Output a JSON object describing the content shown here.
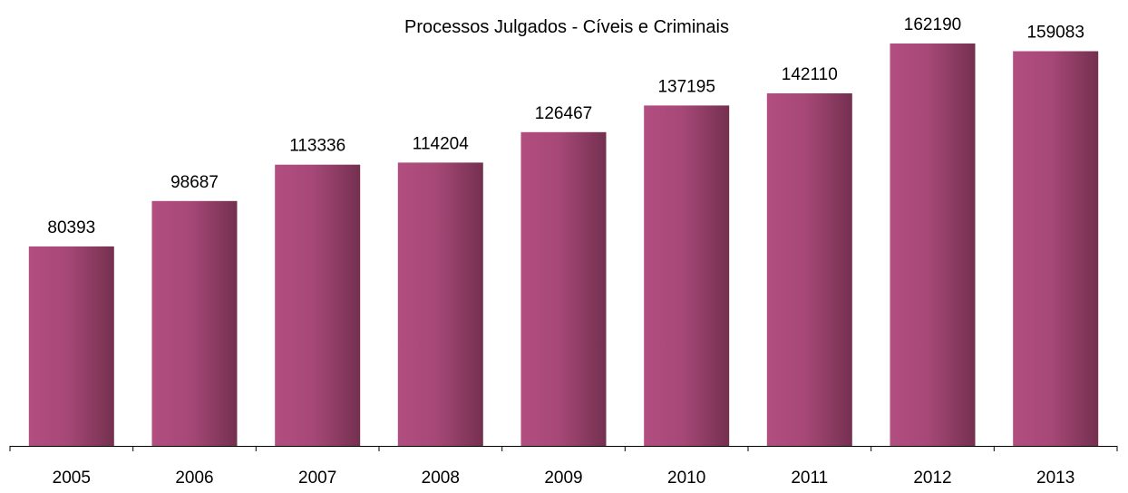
{
  "colors": {
    "bar_light": "#B24E80",
    "bar_mid": "#A64877",
    "bar_dark": "#74304F",
    "axis": "#000000",
    "background": "#FFFFFF"
  },
  "chart_data": {
    "type": "bar",
    "title": "Processos Julgados - Cíveis e Criminais",
    "xlabel": "",
    "ylabel": "",
    "categories": [
      "2005",
      "2006",
      "2007",
      "2008",
      "2009",
      "2010",
      "2011",
      "2012",
      "2013"
    ],
    "values": [
      80393,
      98687,
      113336,
      114204,
      126467,
      137195,
      142110,
      162190,
      159083
    ],
    "ylim": [
      0,
      170000
    ],
    "grid": false,
    "legend": "none",
    "data_labels": true
  }
}
